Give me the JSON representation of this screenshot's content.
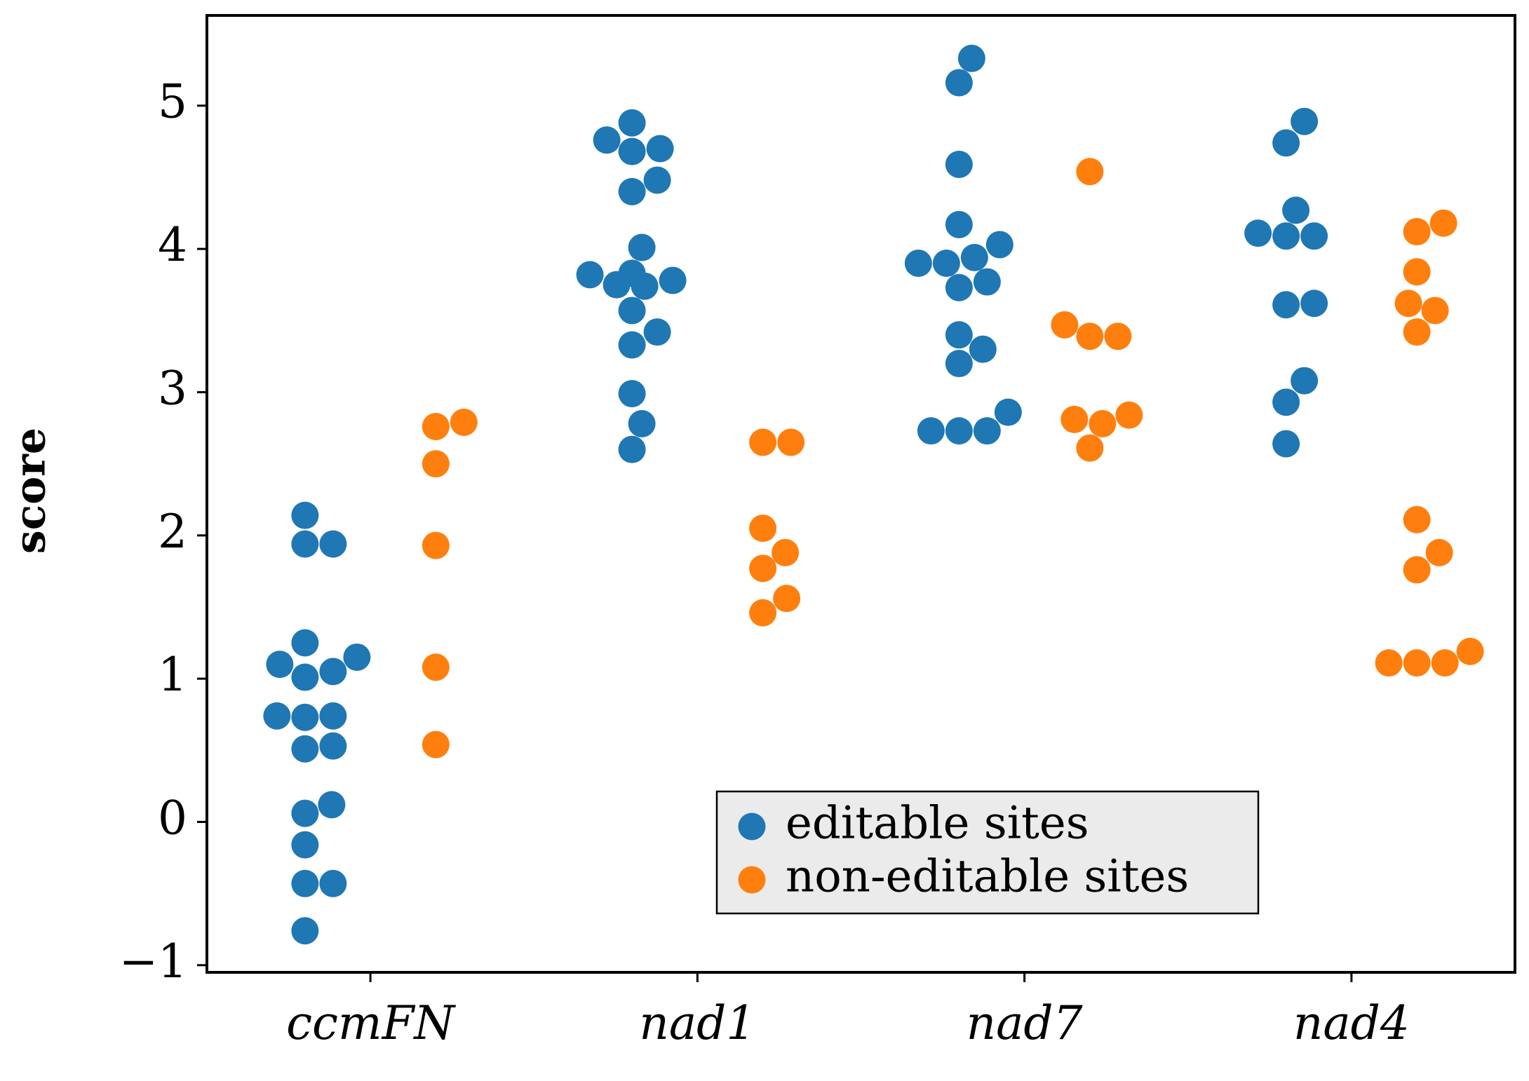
{
  "chart_data": {
    "type": "swarm",
    "y_label": "score",
    "categories": [
      "ccmFN",
      "nad1",
      "nad7",
      "nad4"
    ],
    "ylim": [
      -1.05,
      5.63
    ],
    "yticks": [
      {
        "value": -1,
        "label": "−1"
      },
      0,
      1,
      2,
      3,
      4,
      5
    ],
    "legend_position": "lower right",
    "series": [
      {
        "name": "editable sites",
        "color": "#1f77b4",
        "values": [
          [
            2.14,
            1.94,
            1.94,
            1.25,
            1.15,
            1.1,
            1.05,
            1.01,
            0.74,
            0.73,
            0.74,
            0.53,
            0.51,
            0.12,
            0.06,
            -0.16,
            -0.43,
            -0.43,
            -0.76
          ],
          [
            4.88,
            4.7,
            4.68,
            4.76,
            4.48,
            4.4,
            4.01,
            3.83,
            3.82,
            3.78,
            3.74,
            3.75,
            3.57,
            3.42,
            3.33,
            2.99,
            2.78,
            2.6
          ],
          [
            5.33,
            5.16,
            4.59,
            4.17,
            4.03,
            3.94,
            3.9,
            3.9,
            3.77,
            3.73,
            3.4,
            3.3,
            3.2,
            2.86,
            2.73,
            2.73,
            2.73
          ],
          [
            4.89,
            4.74,
            4.27,
            4.11,
            4.09,
            4.09,
            3.62,
            3.61,
            3.08,
            2.93,
            2.64
          ]
        ]
      },
      {
        "name": "non-editable sites",
        "color": "#ff7f0e",
        "values": [
          [
            2.79,
            2.76,
            2.5,
            1.93,
            1.08,
            0.54
          ],
          [
            2.65,
            2.65,
            2.05,
            1.88,
            1.77,
            1.56,
            1.46
          ],
          [
            4.54,
            3.47,
            3.39,
            3.39,
            2.84,
            2.81,
            2.78,
            2.61
          ],
          [
            4.18,
            4.12,
            3.84,
            3.62,
            3.57,
            3.42,
            2.11,
            1.88,
            1.76,
            1.19,
            1.11,
            1.11,
            1.11
          ]
        ]
      }
    ]
  }
}
